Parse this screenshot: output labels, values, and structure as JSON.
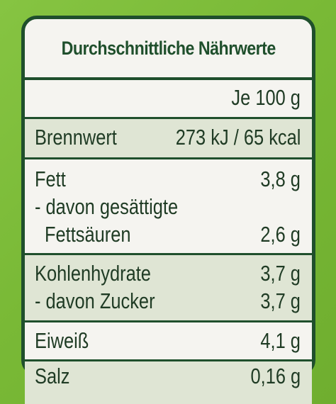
{
  "title": "Durchschnittliche Nährwerte",
  "header": {
    "per_label": "Je 100 g"
  },
  "rows": [
    {
      "label": "Brennwert",
      "value": "273 kJ / 65 kcal"
    },
    {
      "label": "Fett",
      "value": "3,8 g"
    },
    {
      "label": "- davon gesättigte",
      "value": ""
    },
    {
      "label": "Fettsäuren",
      "value": "2,6 g"
    },
    {
      "label": "Kohlenhydrate",
      "value": "3,7 g"
    },
    {
      "label": "- davon Zucker",
      "value": "3,7 g"
    },
    {
      "label": "Eiweiß",
      "value": "4,1 g"
    },
    {
      "label": "Salz",
      "value": "0,16 g"
    }
  ],
  "colors": {
    "background_green": "#7bbd3a",
    "frame_dark_green": "#1f4f2c",
    "panel": "#f5f4f0",
    "shaded_row": "#dfe5d4"
  }
}
